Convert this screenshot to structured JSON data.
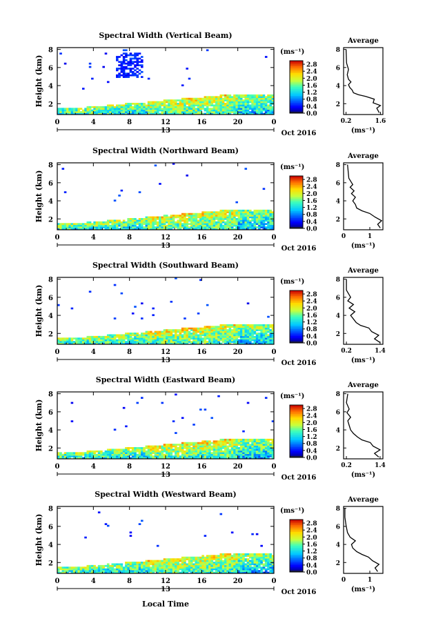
{
  "figure": {
    "date_label": "Oct 2016",
    "xlabel": "Local Time",
    "cbar_unit": "(ms⁻¹)",
    "avg_unit": "(ms⁻¹)"
  },
  "chart_data": [
    {
      "type": "heatmap",
      "title": "Spectral Width (Vertical Beam)",
      "ylabel": "Height (km)",
      "x_ticks": [
        "0",
        "4",
        "8",
        "12",
        "16",
        "20",
        "0"
      ],
      "day_label": "13",
      "y_ticks": [
        "2",
        "4",
        "6",
        "8"
      ],
      "ylim": [
        0.8,
        8.2
      ],
      "xlim": [
        0,
        24
      ],
      "cbar_ticks": [
        "0.0",
        "0.4",
        "0.8",
        "1.2",
        "1.6",
        "2.0",
        "2.4",
        "2.8"
      ],
      "cbar_range": [
        0,
        3.0
      ],
      "avg_title": "Average",
      "avg_x_ticks": [
        "0.2",
        "1.6"
      ],
      "avg_xlim": [
        0.1,
        1.7
      ],
      "avg_profile": [
        [
          1.55,
          1.0
        ],
        [
          1.45,
          1.5
        ],
        [
          1.6,
          1.8
        ],
        [
          1.3,
          2.1
        ],
        [
          1.35,
          2.5
        ],
        [
          1.0,
          2.8
        ],
        [
          0.7,
          3.0
        ],
        [
          0.5,
          3.2
        ],
        [
          0.45,
          3.5
        ],
        [
          0.35,
          3.8
        ],
        [
          0.3,
          4.1
        ],
        [
          0.4,
          4.4
        ],
        [
          0.3,
          4.7
        ],
        [
          0.25,
          5.2
        ],
        [
          0.3,
          5.8
        ],
        [
          0.22,
          6.5
        ],
        [
          0.2,
          8.0
        ]
      ]
    },
    {
      "type": "heatmap",
      "title": "Spectral Width (Northward Beam)",
      "ylabel": "Height (km)",
      "x_ticks": [
        "0",
        "4",
        "8",
        "12",
        "16",
        "20",
        "0"
      ],
      "day_label": "13",
      "y_ticks": [
        "2",
        "4",
        "6",
        "8"
      ],
      "ylim": [
        0.8,
        8.2
      ],
      "xlim": [
        0,
        24
      ],
      "cbar_ticks": [
        "0.0",
        "0.4",
        "0.8",
        "1.2",
        "1.6",
        "2.0",
        "2.4",
        "2.8"
      ],
      "cbar_range": [
        0,
        3.0
      ],
      "avg_title": "Average",
      "avg_x_ticks": [
        "0",
        "1"
      ],
      "avg_xlim": [
        0,
        1.5
      ],
      "avg_profile": [
        [
          1.4,
          1.0
        ],
        [
          1.3,
          1.4
        ],
        [
          1.45,
          1.8
        ],
        [
          1.2,
          2.2
        ],
        [
          1.0,
          2.6
        ],
        [
          0.7,
          2.9
        ],
        [
          0.5,
          3.2
        ],
        [
          0.45,
          3.6
        ],
        [
          0.35,
          4.0
        ],
        [
          0.45,
          4.4
        ],
        [
          0.3,
          4.8
        ],
        [
          0.4,
          5.1
        ],
        [
          0.25,
          5.5
        ],
        [
          0.35,
          5.8
        ],
        [
          0.2,
          6.5
        ],
        [
          0.15,
          8.0
        ]
      ]
    },
    {
      "type": "heatmap",
      "title": "Spectral Width (Southward Beam)",
      "ylabel": "Height (km)",
      "x_ticks": [
        "0",
        "4",
        "8",
        "12",
        "16",
        "20",
        "0"
      ],
      "day_label": "13",
      "y_ticks": [
        "2",
        "4",
        "6",
        "8"
      ],
      "ylim": [
        0.8,
        8.2
      ],
      "xlim": [
        0,
        24
      ],
      "cbar_ticks": [
        "0.0",
        "0.4",
        "0.8",
        "1.2",
        "1.6",
        "2.0",
        "2.4",
        "2.8"
      ],
      "cbar_range": [
        0,
        3.0
      ],
      "avg_title": "Average",
      "avg_x_ticks": [
        "0.2",
        "1.4"
      ],
      "avg_xlim": [
        0.1,
        1.5
      ],
      "avg_profile": [
        [
          1.4,
          1.0
        ],
        [
          1.2,
          1.4
        ],
        [
          1.35,
          1.8
        ],
        [
          1.1,
          2.2
        ],
        [
          1.0,
          2.6
        ],
        [
          0.7,
          2.9
        ],
        [
          0.55,
          3.2
        ],
        [
          0.45,
          3.6
        ],
        [
          0.35,
          4.0
        ],
        [
          0.5,
          4.4
        ],
        [
          0.3,
          4.8
        ],
        [
          0.45,
          5.2
        ],
        [
          0.25,
          5.6
        ],
        [
          0.35,
          6.0
        ],
        [
          0.2,
          6.8
        ],
        [
          0.2,
          8.0
        ]
      ]
    },
    {
      "type": "heatmap",
      "title": "Spectral Width (Eastward Beam)",
      "ylabel": "Height (km)",
      "x_ticks": [
        "0",
        "4",
        "8",
        "12",
        "16",
        "20",
        "0"
      ],
      "day_label": "13",
      "y_ticks": [
        "2",
        "4",
        "6",
        "8"
      ],
      "ylim": [
        0.8,
        8.2
      ],
      "xlim": [
        0,
        24
      ],
      "cbar_ticks": [
        "0.0",
        "0.4",
        "0.8",
        "1.2",
        "1.6",
        "2.0",
        "2.4",
        "2.8"
      ],
      "cbar_range": [
        0,
        3.0
      ],
      "avg_title": "Average",
      "avg_x_ticks": [
        "0.2",
        "1.4"
      ],
      "avg_xlim": [
        0.1,
        1.5
      ],
      "avg_profile": [
        [
          1.35,
          1.0
        ],
        [
          1.2,
          1.4
        ],
        [
          1.4,
          1.8
        ],
        [
          1.15,
          2.2
        ],
        [
          1.05,
          2.6
        ],
        [
          0.75,
          2.9
        ],
        [
          0.6,
          3.2
        ],
        [
          0.45,
          3.6
        ],
        [
          0.35,
          4.0
        ],
        [
          0.3,
          4.5
        ],
        [
          0.25,
          5.0
        ],
        [
          0.35,
          5.4
        ],
        [
          0.22,
          5.9
        ],
        [
          0.3,
          6.3
        ],
        [
          0.2,
          7.0
        ],
        [
          0.25,
          8.0
        ]
      ]
    },
    {
      "type": "heatmap",
      "title": "Spectral Width (Westward Beam)",
      "ylabel": "Height (km)",
      "x_ticks": [
        "0",
        "4",
        "8",
        "12",
        "16",
        "20",
        "0"
      ],
      "day_label": "13",
      "y_ticks": [
        "2",
        "4",
        "6",
        "8"
      ],
      "ylim": [
        0.8,
        8.2
      ],
      "xlim": [
        0,
        24
      ],
      "cbar_ticks": [
        "0.0",
        "0.4",
        "0.8",
        "1.2",
        "1.6",
        "2.0",
        "2.4",
        "2.8"
      ],
      "cbar_range": [
        0,
        3.0
      ],
      "avg_title": "Average",
      "avg_x_ticks": [
        "0",
        "1"
      ],
      "avg_xlim": [
        0,
        1.5
      ],
      "avg_profile": [
        [
          1.3,
          1.0
        ],
        [
          1.2,
          1.4
        ],
        [
          1.35,
          1.8
        ],
        [
          1.1,
          2.2
        ],
        [
          0.95,
          2.6
        ],
        [
          0.7,
          2.9
        ],
        [
          0.5,
          3.2
        ],
        [
          0.35,
          3.6
        ],
        [
          0.3,
          4.0
        ],
        [
          0.45,
          4.4
        ],
        [
          0.25,
          4.8
        ],
        [
          0.15,
          5.3
        ],
        [
          0.1,
          6.0
        ],
        [
          0.05,
          7.0
        ],
        [
          0.05,
          8.0
        ]
      ]
    }
  ]
}
